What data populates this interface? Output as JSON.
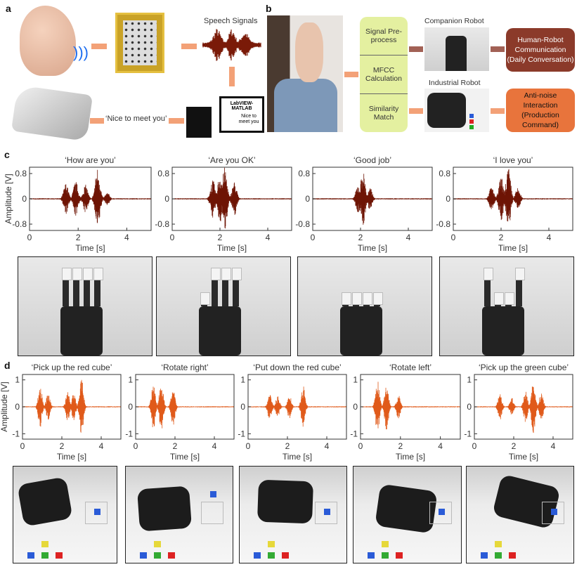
{
  "panels": {
    "a": "a",
    "b": "b",
    "c": "c",
    "d": "d"
  },
  "a": {
    "speech_signals": "Speech Signals",
    "software": "LabVIEW-MATLAB",
    "screen_text": "Nice to meet you",
    "output_phrase": "‘Nice to meet you’"
  },
  "b": {
    "steps": [
      "Signal Pre-process",
      "MFCC Calculation",
      "Similarity Match"
    ],
    "companion_label": "Companion Robot",
    "industrial_label": "Industrial Robot",
    "companion_box": "Human-Robot Communication (Daily Conversation)",
    "industrial_box": "Anti-noise Interaction (Production Command)"
  },
  "colors": {
    "c_wave": "#6e1404",
    "d_wave": "#e05a1a",
    "step_box": "#e4f0a0",
    "companion_box": "#8b3a2a",
    "industrial_box": "#e8743c",
    "arrow": "#f08a55"
  },
  "chart_data": [
    {
      "type": "line",
      "group": "c",
      "title": "‘How are you’",
      "xlabel": "Time [s]",
      "ylabel": "Amplitude [V]",
      "xlim": [
        0,
        5
      ],
      "ylim": [
        -1,
        1
      ],
      "xticks": [
        0,
        2,
        4
      ],
      "yticks": [
        0.8,
        0,
        -0.8
      ],
      "ytick_labels": [
        "0.8",
        "0",
        "-0.8"
      ],
      "bursts": [
        [
          1.5,
          0.5
        ],
        [
          1.9,
          0.55
        ],
        [
          2.3,
          0.45
        ],
        [
          2.8,
          1.0
        ],
        [
          3.2,
          0.2
        ]
      ]
    },
    {
      "type": "line",
      "group": "c",
      "title": "‘Are you OK’",
      "xlabel": "Time [s]",
      "ylabel": "",
      "xlim": [
        0,
        5
      ],
      "ylim": [
        -1,
        1
      ],
      "xticks": [
        0,
        2,
        4
      ],
      "yticks": [
        0.8,
        0,
        -0.8
      ],
      "ytick_labels": [
        "0.8",
        "0",
        "-0.8"
      ],
      "bursts": [
        [
          1.7,
          0.6
        ],
        [
          2.0,
          0.8
        ],
        [
          2.2,
          1.0
        ],
        [
          2.6,
          0.55
        ]
      ]
    },
    {
      "type": "line",
      "group": "c",
      "title": "‘Good job’",
      "xlabel": "Time [s]",
      "ylabel": "",
      "xlim": [
        0,
        5
      ],
      "ylim": [
        -1,
        1
      ],
      "xticks": [
        0,
        2,
        4
      ],
      "yticks": [
        0.8,
        0,
        -0.8
      ],
      "ytick_labels": [
        "0.8",
        "0",
        "-0.8"
      ],
      "bursts": [
        [
          1.9,
          0.45
        ],
        [
          2.1,
          0.9
        ],
        [
          2.4,
          0.35
        ]
      ]
    },
    {
      "type": "line",
      "group": "c",
      "title": "‘I love you’",
      "xlabel": "Time [s]",
      "ylabel": "",
      "xlim": [
        0,
        5
      ],
      "ylim": [
        -1,
        1
      ],
      "xticks": [
        0,
        2,
        4
      ],
      "yticks": [
        0.8,
        0,
        -0.8
      ],
      "ytick_labels": [
        "0.8",
        "0",
        "-0.8"
      ],
      "bursts": [
        [
          1.6,
          0.4
        ],
        [
          2.0,
          0.7
        ],
        [
          2.3,
          1.0
        ],
        [
          2.7,
          0.35
        ]
      ]
    },
    {
      "type": "line",
      "group": "d",
      "title": "‘Pick up the red cube’",
      "xlabel": "Time [s]",
      "ylabel": "Amplitude [V]",
      "xlim": [
        0,
        5
      ],
      "ylim": [
        -1.2,
        1.2
      ],
      "xticks": [
        0,
        2,
        4
      ],
      "yticks": [
        1,
        0,
        -1
      ],
      "ytick_labels": [
        "1",
        "0",
        "-1"
      ],
      "bursts": [
        [
          0.9,
          0.8
        ],
        [
          1.3,
          0.5
        ],
        [
          2.3,
          0.55
        ],
        [
          2.6,
          0.5
        ],
        [
          3.0,
          1.05
        ]
      ]
    },
    {
      "type": "line",
      "group": "d",
      "title": "‘Rotate right’",
      "xlabel": "Time [s]",
      "ylabel": "",
      "xlim": [
        0,
        5
      ],
      "ylim": [
        -1.2,
        1.2
      ],
      "xticks": [
        0,
        2,
        4
      ],
      "yticks": [
        1,
        0,
        -1
      ],
      "ytick_labels": [
        "1",
        "0",
        "-1"
      ],
      "bursts": [
        [
          0.9,
          0.85
        ],
        [
          1.3,
          1.0
        ],
        [
          1.9,
          0.7
        ]
      ]
    },
    {
      "type": "line",
      "group": "d",
      "title": "‘Put down the red cube’",
      "xlabel": "Time [s]",
      "ylabel": "",
      "xlim": [
        0,
        5
      ],
      "ylim": [
        -1.2,
        1.2
      ],
      "xticks": [
        0,
        2,
        4
      ],
      "yticks": [
        1,
        0,
        -1
      ],
      "ytick_labels": [
        "1",
        "0",
        "-1"
      ],
      "bursts": [
        [
          1.1,
          0.5
        ],
        [
          1.5,
          0.4
        ],
        [
          2.1,
          0.45
        ],
        [
          2.8,
          0.8
        ]
      ]
    },
    {
      "type": "line",
      "group": "d",
      "title": "‘Rotate left’",
      "xlabel": "Time [s]",
      "ylabel": "",
      "xlim": [
        0,
        5
      ],
      "ylim": [
        -1.2,
        1.2
      ],
      "xticks": [
        0,
        2,
        4
      ],
      "yticks": [
        1,
        0,
        -1
      ],
      "ytick_labels": [
        "1",
        "0",
        "-1"
      ],
      "bursts": [
        [
          0.85,
          1.0
        ],
        [
          1.3,
          0.9
        ],
        [
          1.9,
          0.45
        ]
      ]
    },
    {
      "type": "line",
      "group": "d",
      "title": "‘Pick up the green cube’",
      "xlabel": "Time [s]",
      "ylabel": "",
      "xlim": [
        0,
        5
      ],
      "ylim": [
        -1.2,
        1.2
      ],
      "xticks": [
        0,
        2,
        4
      ],
      "yticks": [
        1,
        0,
        -1
      ],
      "ytick_labels": [
        "1",
        "0",
        "-1"
      ],
      "bursts": [
        [
          1.3,
          0.5
        ],
        [
          1.9,
          0.35
        ],
        [
          2.6,
          0.6
        ],
        [
          3.0,
          1.0
        ],
        [
          3.4,
          0.55
        ]
      ]
    }
  ]
}
